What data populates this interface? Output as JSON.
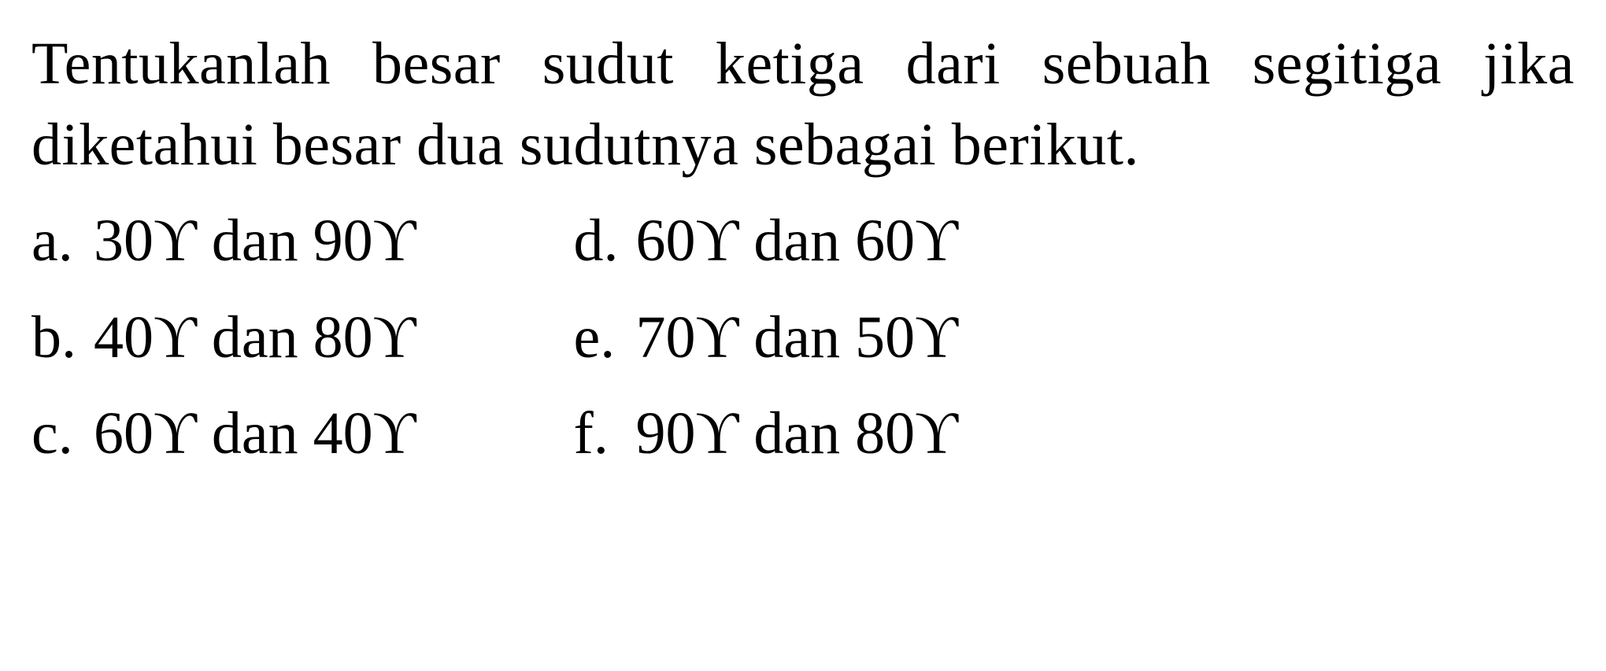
{
  "question": {
    "text": "Tentukanlah besar sudut ketiga dari sebuah segitiga jika diketahui besar dua sudutnya sebagai berikut.",
    "font_size": 76,
    "color": "#000000",
    "background_color": "#ffffff"
  },
  "options": {
    "left": [
      {
        "label": "a.",
        "text": "30ϒ dan 90ϒ"
      },
      {
        "label": "b.",
        "text": "40ϒ dan 80ϒ"
      },
      {
        "label": "c.",
        "text": "60ϒ dan 40ϒ"
      }
    ],
    "right": [
      {
        "label": "d.",
        "text": "60ϒ dan 60ϒ"
      },
      {
        "label": "e.",
        "text": "70ϒ dan 50ϒ"
      },
      {
        "label": "f.",
        "text": "90ϒ dan 80ϒ"
      }
    ]
  }
}
